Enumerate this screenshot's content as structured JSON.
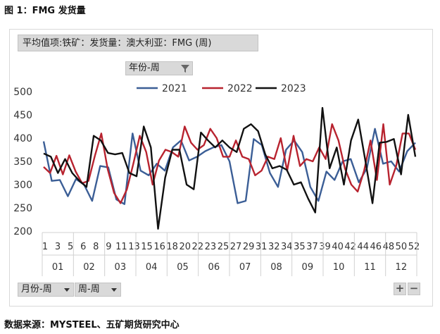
{
  "figure_title": "图 1：FMG 发货量",
  "source": "数据来源：MYSTEEL、五矿期货研究中心",
  "pivot": {
    "header": "平均值项:铁矿：发货量：澳大利亚：FMG (周)",
    "column_field": "年份-周",
    "row_fields": [
      "月份-周",
      "周-周"
    ],
    "zoom_in": "+",
    "zoom_out": "−"
  },
  "icons": {
    "filter": "filter-icon",
    "dropdown": "chevron-down-icon"
  },
  "chart_data": {
    "type": "line",
    "ylim": [
      200,
      500
    ],
    "yticks": [
      "200",
      "250",
      "300",
      "350",
      "400",
      "450",
      "500"
    ],
    "grid": false,
    "legend_position": "top",
    "x_week_labels": [
      "1",
      "3",
      "5",
      "",
      "6",
      "8",
      "9",
      "11",
      "13",
      "15",
      "16",
      "18",
      "20",
      "22",
      "23",
      "25",
      "27",
      "29",
      "31",
      "32",
      "34",
      "35",
      "37",
      "39",
      "40",
      "42",
      "44",
      "46",
      "48",
      "50",
      "52"
    ],
    "x_week_labels_text": [
      "1",
      "3",
      "5",
      "6",
      "8",
      "9",
      "11",
      "13",
      "15",
      "16",
      "18",
      "20",
      "22",
      "23",
      "25",
      "27",
      "29",
      "31",
      "32",
      "34",
      "35",
      "37",
      "39",
      "40",
      "42",
      "44",
      "46",
      "48",
      "50",
      "52"
    ],
    "months": [
      "01",
      "02",
      "03",
      "04",
      "05",
      "06",
      "07",
      "08",
      "09",
      "10",
      "11",
      "12"
    ],
    "series": [
      {
        "name": "2021",
        "color": "#3b5e96",
        "values": [
          393,
          308,
          310,
          275,
          312,
          300,
          265,
          340,
          337,
          268,
          258,
          410,
          330,
          320,
          345,
          330,
          380,
          395,
          352,
          360,
          372,
          380,
          385,
          350,
          260,
          265,
          398,
          385,
          325,
          295,
          375,
          395,
          370,
          295,
          265,
          328,
          310,
          350,
          355,
          305,
          335,
          420,
          345,
          350,
          328,
          372,
          390
        ]
      },
      {
        "name": "2022",
        "color": "#b8232f",
        "values": [
          338,
          325,
          362,
          322,
          363,
          328,
          303,
          308,
          362,
          410,
          333,
          282,
          260,
          290,
          345,
          405,
          370,
          300,
          352,
          375,
          370,
          360,
          425,
          390,
          375,
          385,
          420,
          400,
          360,
          360,
          395,
          360,
          355,
          320,
          330,
          360,
          355,
          400,
          330,
          405,
          340,
          355,
          350,
          380,
          355,
          430,
          395,
          335,
          300,
          285,
          330,
          395,
          310,
          430,
          300,
          340,
          410,
          410,
          375
        ]
      },
      {
        "name": "2023",
        "color": "#111111",
        "values": [
          367,
          360,
          325,
          355,
          325,
          308,
          295,
          405,
          395,
          368,
          365,
          368,
          325,
          318,
          425,
          380,
          205,
          315,
          375,
          375,
          300,
          290,
          412,
          395,
          380,
          395,
          380,
          370,
          420,
          430,
          415,
          365,
          335,
          340,
          332,
          300,
          305,
          270,
          240,
          465,
          335,
          380,
          300,
          395,
          440,
          352,
          260,
          390,
          392,
          398,
          322,
          450,
          360
        ]
      }
    ]
  }
}
